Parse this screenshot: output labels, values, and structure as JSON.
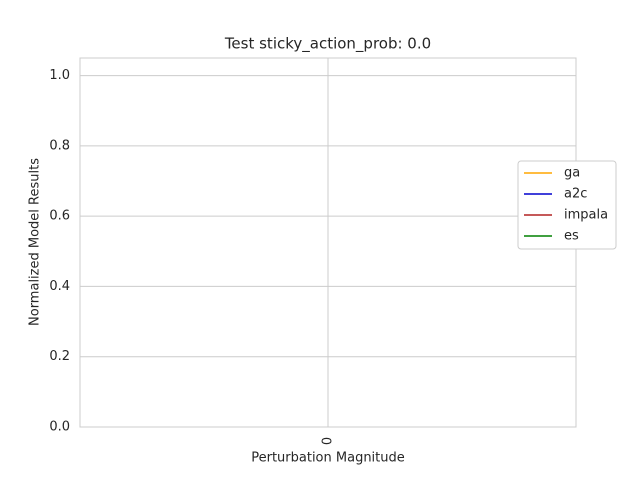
{
  "chart_data": {
    "type": "line",
    "title": "Test sticky_action_prob: 0.0",
    "x_label": "Perturbation Magnitude",
    "y_label": "Normalized Model Results",
    "categories": [
      "0"
    ],
    "series": [
      {
        "name": "ga",
        "color": "#ffa500",
        "values": [
          null
        ]
      },
      {
        "name": "a2c",
        "color": "#0000cd",
        "values": [
          null
        ]
      },
      {
        "name": "impala",
        "color": "#b22222",
        "values": [
          null
        ]
      },
      {
        "name": "es",
        "color": "#008000",
        "values": [
          null
        ]
      }
    ],
    "ylim": [
      0,
      1.05
    ],
    "yticks": [
      {
        "value": 0,
        "label": "0.0"
      },
      {
        "value": 0.2,
        "label": "0.2"
      },
      {
        "value": 0.4,
        "label": "0.4"
      },
      {
        "value": 0.6,
        "label": "0.6"
      },
      {
        "value": 0.8,
        "label": "0.8"
      },
      {
        "value": 1,
        "label": "1.0"
      }
    ],
    "grid": true,
    "legend": "right"
  }
}
